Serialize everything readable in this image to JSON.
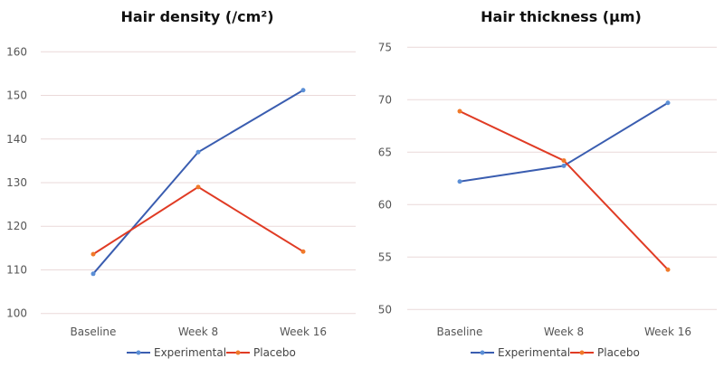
{
  "chart_data": [
    {
      "type": "line",
      "title": "Hair density (/cm²)",
      "categories": [
        "Baseline",
        "Week 8",
        "Week 16"
      ],
      "ylim": [
        100,
        160
      ],
      "yticks": [
        100,
        110,
        120,
        130,
        140,
        150,
        160
      ],
      "grid": true,
      "legend_position": "bottom",
      "series": [
        {
          "name": "Experimental",
          "color": "#3a5db0",
          "marker_color": "#5b8fd6",
          "values": [
            109.1,
            137.0,
            151.2
          ]
        },
        {
          "name": "Placebo",
          "color": "#e03b24",
          "marker_color": "#f07a2a",
          "values": [
            113.6,
            129.0,
            114.2
          ]
        }
      ]
    },
    {
      "type": "line",
      "title": "Hair thickness (µm)",
      "categories": [
        "Baseline",
        "Week 8",
        "Week 16"
      ],
      "ylim": [
        50,
        75
      ],
      "yticks": [
        50,
        55,
        60,
        65,
        70,
        75
      ],
      "grid": true,
      "legend_position": "bottom",
      "series": [
        {
          "name": "Experimental",
          "color": "#3a5db0",
          "marker_color": "#5b8fd6",
          "values": [
            62.2,
            63.7,
            69.7
          ]
        },
        {
          "name": "Placebo",
          "color": "#e03b24",
          "marker_color": "#f07a2a",
          "values": [
            68.9,
            64.2,
            53.8
          ]
        }
      ]
    }
  ]
}
